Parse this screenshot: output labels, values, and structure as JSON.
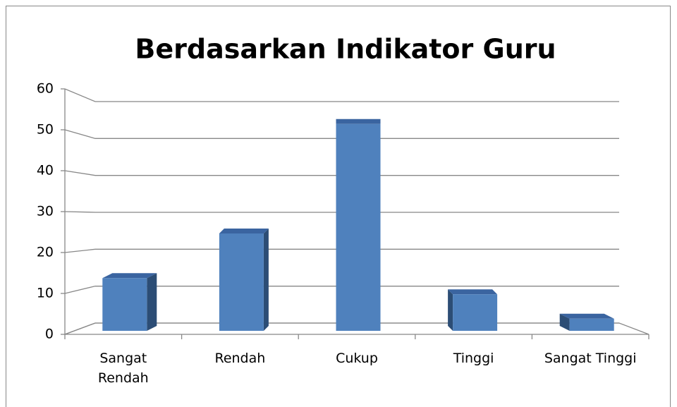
{
  "chart_data": {
    "type": "bar",
    "title": "Berdasarkan Indikator Guru",
    "categories": [
      "Sangat Rendah",
      "Rendah",
      "Cukup",
      "Tinggi",
      "Sangat Tinggi"
    ],
    "values": [
      13,
      24,
      51,
      9,
      3
    ],
    "color": "#4f81bd",
    "ylim": [
      0,
      60
    ],
    "yticks": [
      0,
      10,
      20,
      30,
      40,
      50,
      60
    ],
    "grid": true
  }
}
